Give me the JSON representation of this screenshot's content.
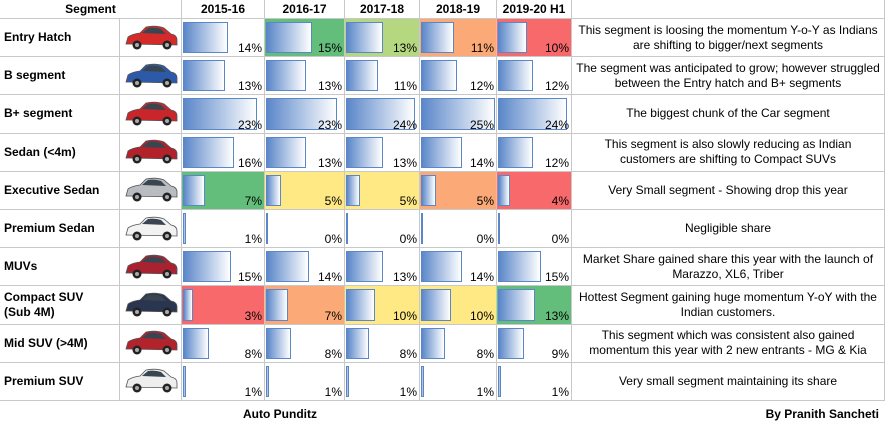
{
  "table": {
    "header": [
      "Segment",
      "2015-16",
      "2016-17",
      "2017-18",
      "2018-19",
      "2019-20 H1"
    ],
    "rows": [
      {
        "segment": "Entry Hatch",
        "car_color": "#d42a2a",
        "shares": [
          14,
          15,
          13,
          11,
          10
        ],
        "labels": [
          "14%",
          "15%",
          "13%",
          "11%",
          "10%"
        ],
        "fills": [
          null,
          "#63be7b",
          "#b5d77f",
          "#fba976",
          "#f8696b"
        ],
        "note": "This segment is loosing the momentum Y-o-Y as Indians are shifting to bigger/next segments"
      },
      {
        "segment": "B segment",
        "car_color": "#2d5aa8",
        "shares": [
          13,
          13,
          11,
          12,
          12
        ],
        "labels": [
          "13%",
          "13%",
          "11%",
          "12%",
          "12%"
        ],
        "fills": [
          null,
          null,
          null,
          null,
          null
        ],
        "note": "The segment was anticipated to grow; however struggled between the Entry hatch and B+ segments"
      },
      {
        "segment": "B+ segment",
        "car_color": "#c8262b",
        "shares": [
          23,
          23,
          24,
          25,
          24
        ],
        "labels": [
          "23%",
          "23%",
          "24%",
          "25%",
          "24%"
        ],
        "fills": [
          null,
          null,
          null,
          null,
          null
        ],
        "note": "The biggest chunk of the Car segment"
      },
      {
        "segment": "Sedan (<4m)",
        "car_color": "#b3212a",
        "shares": [
          16,
          13,
          13,
          14,
          12
        ],
        "labels": [
          "16%",
          "13%",
          "13%",
          "14%",
          "12%"
        ],
        "fills": [
          null,
          null,
          null,
          null,
          null
        ],
        "note": "This segment is also slowly reducing as Indian customers are shifting to Compact SUVs"
      },
      {
        "segment": "Executive Sedan",
        "car_color": "#b9bcc0",
        "shares": [
          7,
          5,
          5,
          5,
          4
        ],
        "labels": [
          "7%",
          "5%",
          "5%",
          "5%",
          "4%"
        ],
        "fills": [
          "#63be7b",
          "#ffe984",
          "#ffe984",
          "#fba976",
          "#f8696b"
        ],
        "note": "Very Small segment - Showing drop this year"
      },
      {
        "segment": "Premium Sedan",
        "car_color": "#f2f2f2",
        "shares": [
          1,
          0,
          0,
          0,
          0
        ],
        "labels": [
          "1%",
          "0%",
          "0%",
          "0%",
          "0%"
        ],
        "fills": [
          null,
          null,
          null,
          null,
          null
        ],
        "note": "Negligible share"
      },
      {
        "segment": "MUVs",
        "car_color": "#a82230",
        "shares": [
          15,
          14,
          13,
          14,
          15
        ],
        "labels": [
          "15%",
          "14%",
          "13%",
          "14%",
          "15%"
        ],
        "fills": [
          null,
          null,
          null,
          null,
          null
        ],
        "note": "Market Share gained share this year with the launch of Marazzo, XL6, Triber"
      },
      {
        "segment": "Compact SUV\n(Sub 4M)",
        "car_color": "#2a3550",
        "shares": [
          3,
          7,
          10,
          10,
          13
        ],
        "labels": [
          "3%",
          "7%",
          "10%",
          "10%",
          "13%"
        ],
        "fills": [
          "#f8696b",
          "#fba976",
          "#ffe984",
          "#ffe984",
          "#63be7b"
        ],
        "note": "Hottest Segment gaining huge momentum Y-oY with the Indian customers."
      },
      {
        "segment": "Mid SUV (>4M)",
        "car_color": "#b3232c",
        "shares": [
          8,
          8,
          8,
          8,
          9
        ],
        "labels": [
          "8%",
          "8%",
          "8%",
          "8%",
          "9%"
        ],
        "fills": [
          null,
          null,
          null,
          null,
          null
        ],
        "note": "This segment which was consistent also gained momentum this year with 2 new entrants - MG & Kia"
      },
      {
        "segment": "Premium SUV",
        "car_color": "#eeeeee",
        "shares": [
          1,
          1,
          1,
          1,
          1
        ],
        "labels": [
          "1%",
          "1%",
          "1%",
          "1%",
          "1%"
        ],
        "fills": [
          null,
          null,
          null,
          null,
          null
        ],
        "note": "Very small segment maintaining its share"
      }
    ]
  },
  "footer": {
    "left": "Auto Punditz",
    "right": "By Pranith Sancheti"
  }
}
